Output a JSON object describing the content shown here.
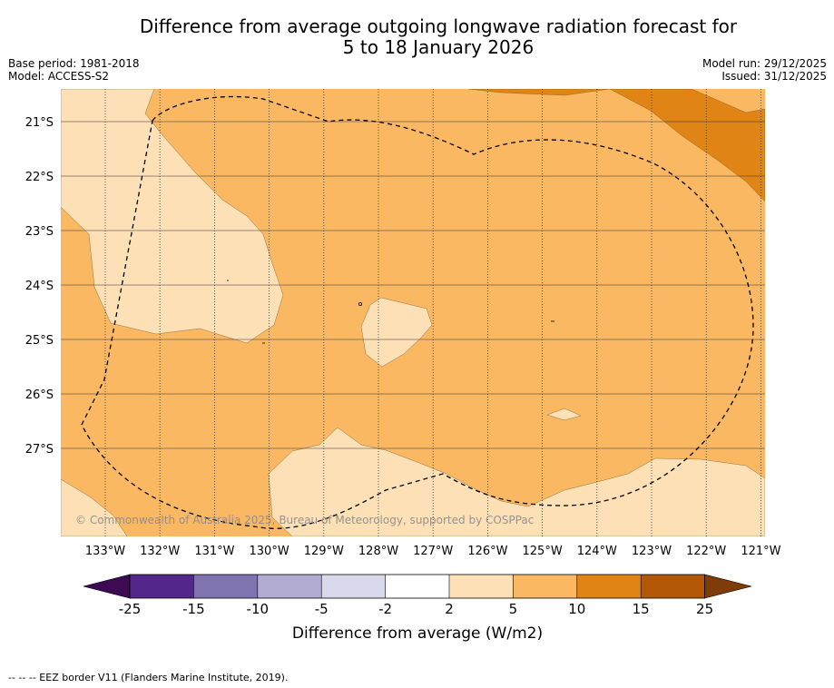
{
  "header": {
    "title_line1": "Difference from average outgoing longwave radiation forecast for",
    "title_line2": "5 to 18 January 2026",
    "base_period": "Base period: 1981-2018",
    "model": "Model: ACCESS-S2",
    "model_run": "Model run: 29/12/2025",
    "issued": "Issued: 31/12/2025"
  },
  "map": {
    "lat_labels": [
      "21°S",
      "22°S",
      "23°S",
      "24°S",
      "25°S",
      "26°S",
      "27°S"
    ],
    "lon_labels": [
      "133°W",
      "132°W",
      "131°W",
      "130°W",
      "129°W",
      "128°W",
      "127°W",
      "126°W",
      "125°W",
      "124°W",
      "123°W",
      "122°W",
      "121°W"
    ],
    "watermark": "© Commonwealth of Australia 2025, Bureau of Meteorology, supported by COSPPac",
    "colors": {
      "band_2_5": "#fde0b6",
      "band_5_10": "#fbb862",
      "band_10_15": "#e08416",
      "grid": "#333333",
      "eez": "#000000"
    }
  },
  "colorbar": {
    "label": "Difference from average (W/m2)",
    "ticks": [
      "-25",
      "-15",
      "-10",
      "-5",
      "-2",
      "2",
      "5",
      "10",
      "15",
      "25"
    ],
    "colors": [
      "#3c0b52",
      "#54278a",
      "#8074ae",
      "#b2abd2",
      "#d8daeb",
      "#ffffff",
      "#fde0b6",
      "#fbb862",
      "#e08416",
      "#b35806",
      "#7f3b08"
    ]
  },
  "footnote": "-- -- -- EEZ border V11 (Flanders Marine Institute, 2019)."
}
